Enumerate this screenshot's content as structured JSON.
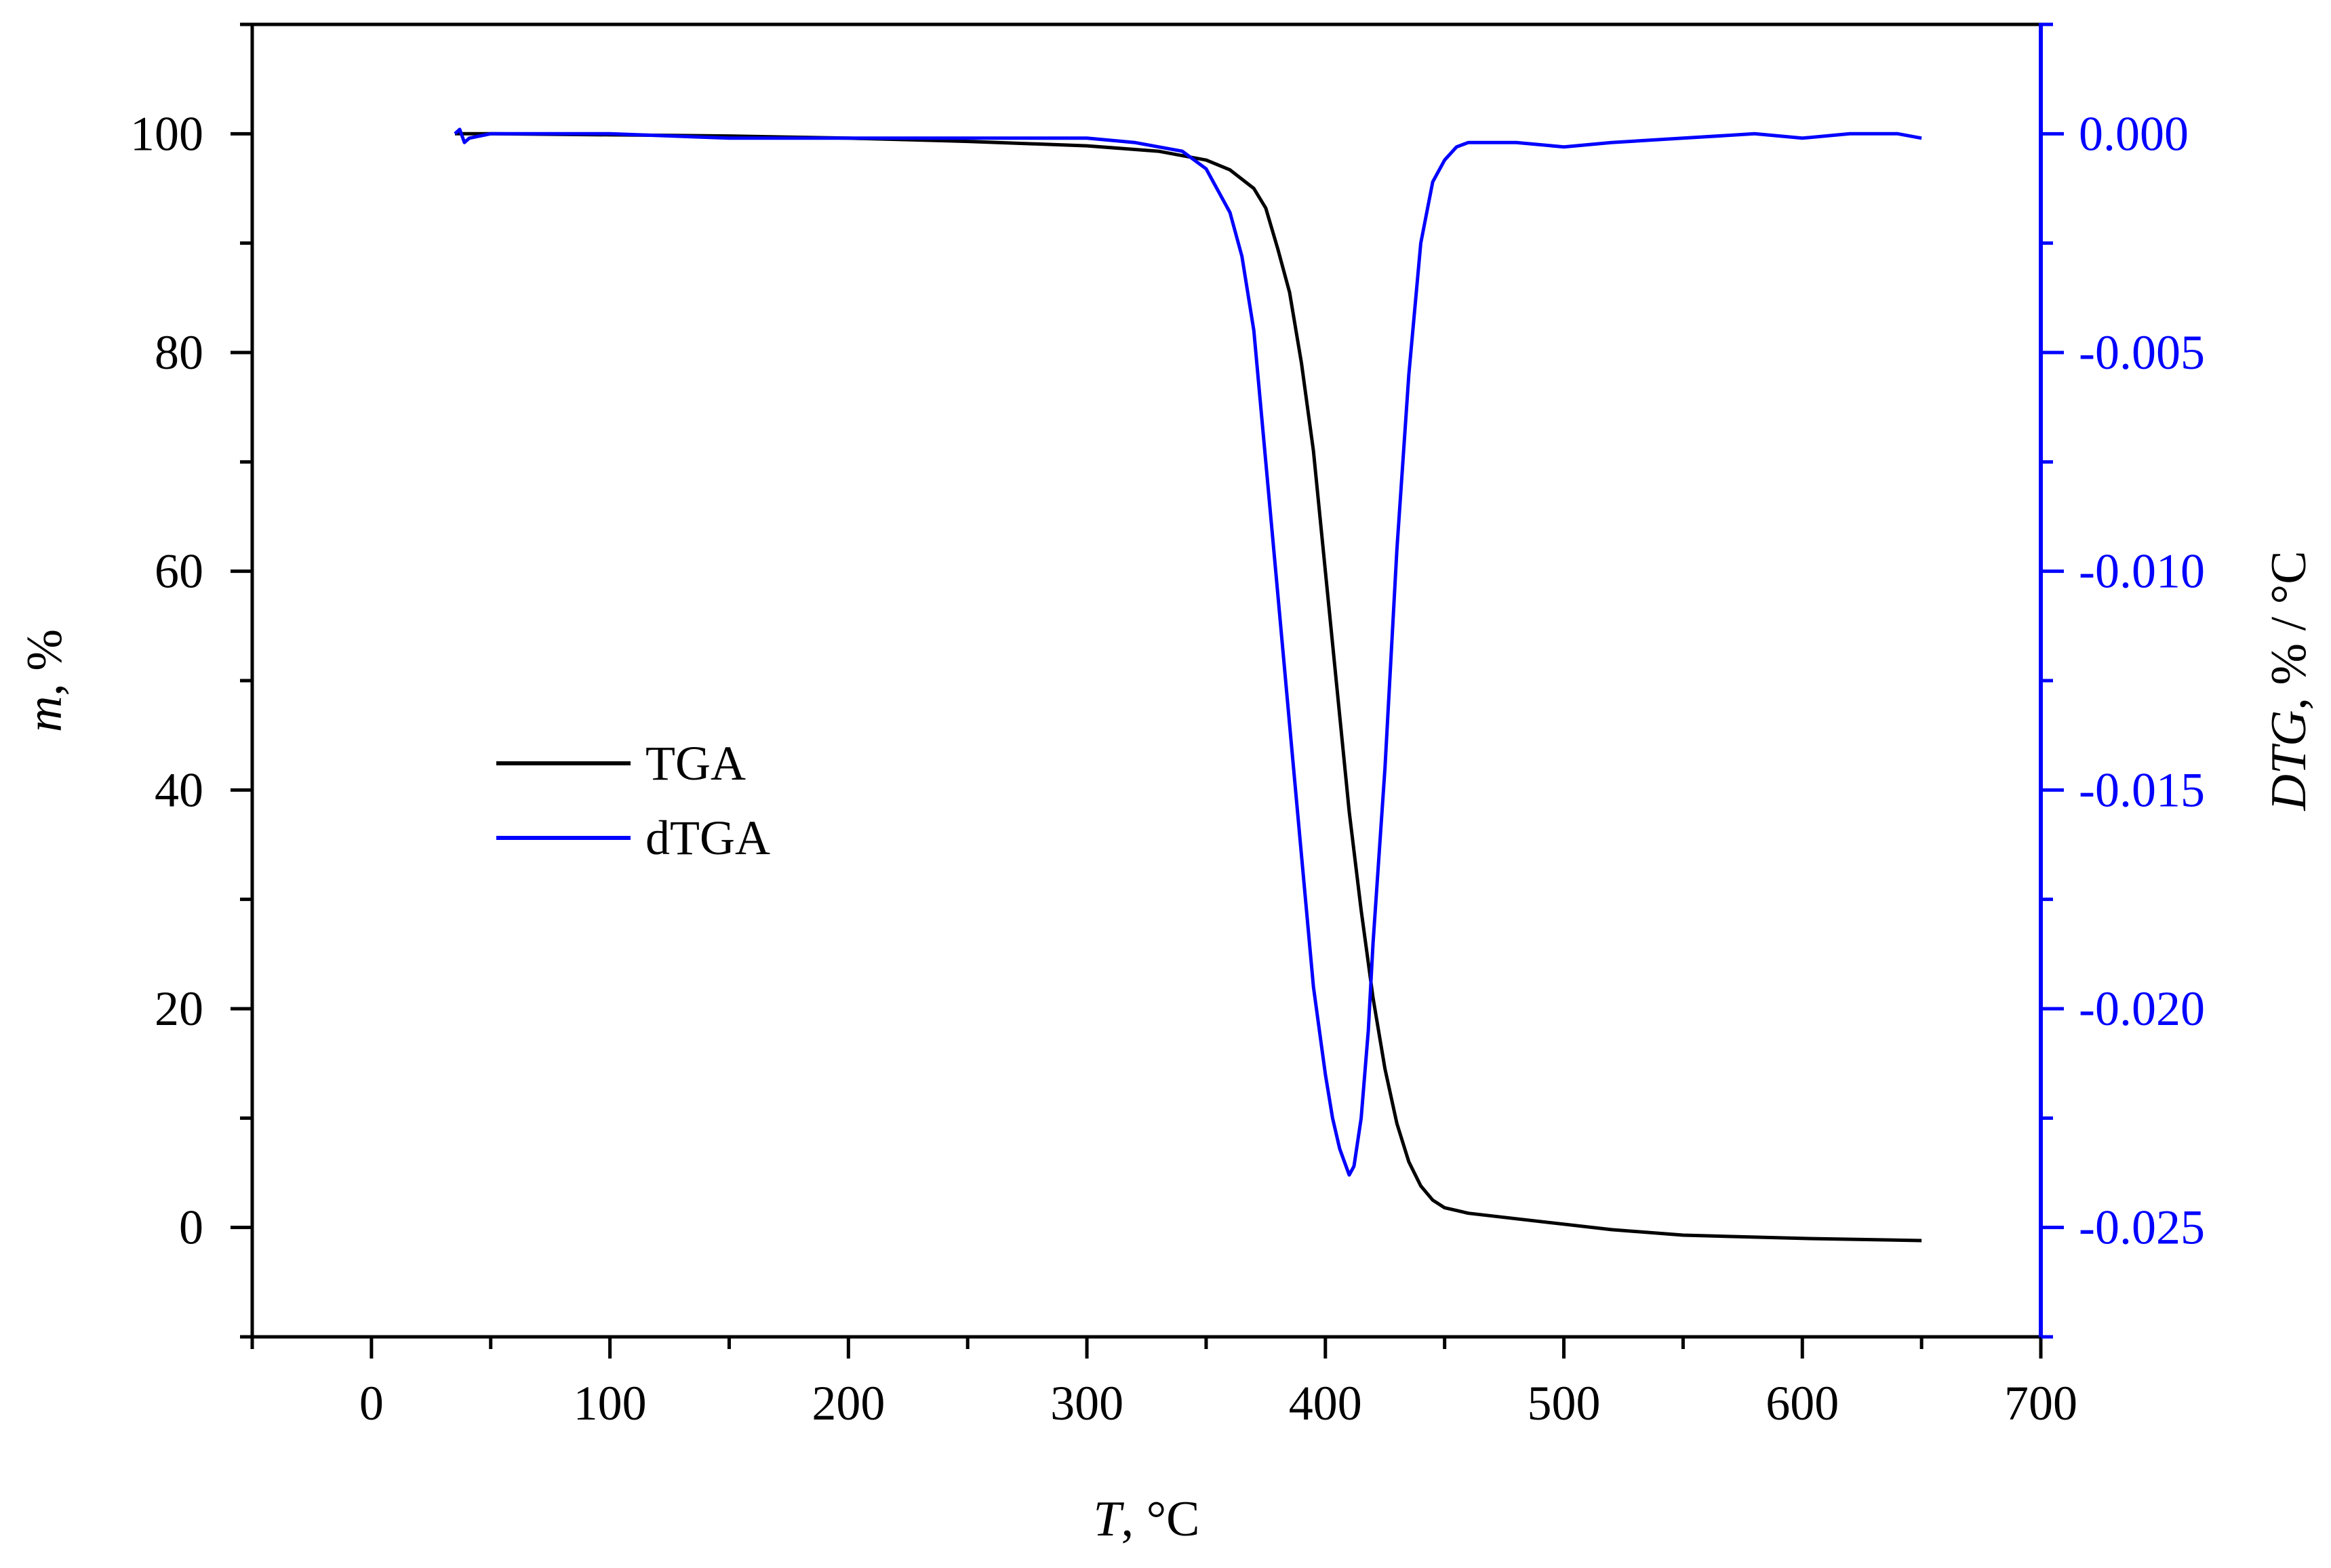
{
  "chart_data": {
    "type": "line",
    "xlabel": {
      "italic": "T",
      "rest": ", °C"
    },
    "ylabel_left": {
      "italic": "m",
      "rest": ", %"
    },
    "ylabel_right": {
      "italic": "DTG",
      "rest": ", % / °C"
    },
    "xlim": [
      -50,
      700
    ],
    "ylim_left": [
      -10,
      110
    ],
    "ylim_right": [
      -0.0275,
      0.0025
    ],
    "x_ticks": [
      0,
      100,
      200,
      300,
      400,
      500,
      600,
      700
    ],
    "x_tick_labels": [
      "0",
      "100",
      "200",
      "300",
      "400",
      "500",
      "600",
      "700"
    ],
    "y_left_ticks": [
      0,
      20,
      40,
      60,
      80,
      100
    ],
    "y_left_tick_labels": [
      "0",
      "20",
      "40",
      "60",
      "80",
      "100"
    ],
    "y_right_ticks": [
      0.0,
      -0.005,
      -0.01,
      -0.015,
      -0.02,
      -0.025
    ],
    "y_right_tick_labels": [
      "0.000",
      "-0.005",
      "-0.010",
      "-0.015",
      "-0.020",
      "-0.025"
    ],
    "grid": false,
    "legend_position": "center-left",
    "series": [
      {
        "name": "TGA",
        "axis": "left",
        "color": "#000000",
        "x": [
          35,
          50,
          100,
          150,
          200,
          250,
          300,
          330,
          350,
          360,
          370,
          375,
          380,
          385,
          390,
          395,
          400,
          405,
          410,
          415,
          420,
          425,
          430,
          435,
          440,
          445,
          450,
          460,
          480,
          500,
          520,
          550,
          600,
          650
        ],
        "y": [
          100,
          100,
          99.9,
          99.8,
          99.6,
          99.3,
          98.9,
          98.4,
          97.6,
          96.7,
          95.0,
          93.2,
          89.5,
          85.5,
          79.0,
          71.0,
          60.0,
          49.0,
          38.0,
          29.0,
          21.0,
          14.5,
          9.5,
          6.0,
          3.8,
          2.5,
          1.8,
          1.3,
          0.8,
          0.3,
          -0.2,
          -0.7,
          -1.0,
          -1.2
        ]
      },
      {
        "name": "dTGA",
        "axis": "right",
        "color": "#0000ff",
        "x": [
          35,
          37,
          39,
          41,
          50,
          100,
          150,
          200,
          250,
          300,
          320,
          340,
          350,
          360,
          365,
          370,
          375,
          380,
          385,
          390,
          395,
          400,
          403,
          406,
          408,
          410,
          412,
          415,
          418,
          420,
          425,
          430,
          435,
          440,
          445,
          450,
          455,
          460,
          470,
          480,
          500,
          520,
          550,
          580,
          600,
          620,
          640,
          650
        ],
        "y": [
          0.0,
          0.0001,
          -0.0002,
          -0.0001,
          0.0,
          0.0,
          -0.0001,
          -0.0001,
          -0.0001,
          -0.0001,
          -0.0002,
          -0.0004,
          -0.0008,
          -0.0018,
          -0.0028,
          -0.0045,
          -0.0075,
          -0.0105,
          -0.0135,
          -0.0165,
          -0.0195,
          -0.0215,
          -0.0225,
          -0.0232,
          -0.0235,
          -0.0238,
          -0.0236,
          -0.0225,
          -0.0205,
          -0.0185,
          -0.0145,
          -0.0095,
          -0.0055,
          -0.0025,
          -0.0011,
          -0.0006,
          -0.0003,
          -0.0002,
          -0.0002,
          -0.0002,
          -0.0003,
          -0.0002,
          -0.0001,
          0.0,
          -0.0001,
          0.0,
          0.0,
          -0.0001
        ]
      }
    ]
  }
}
